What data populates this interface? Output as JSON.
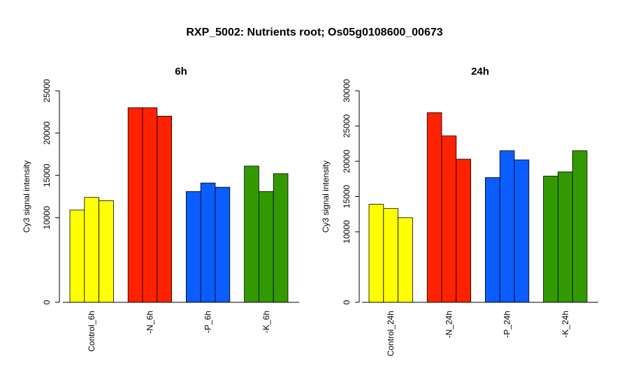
{
  "title": "RXP_5002: Nutrients root; Os05g0108600_00673",
  "chart_data": [
    {
      "type": "bar",
      "title": "6h",
      "ylabel": "Cy3 signal intensity",
      "xlabel": "",
      "ylim": [
        0,
        25000
      ],
      "yticks": [
        0,
        10000,
        15000,
        20000,
        25000
      ],
      "categories": [
        "Control_6h",
        "-N_6h",
        "-P_6h",
        "-K_6h"
      ],
      "colors": [
        "#ffff00",
        "#ff2200",
        "#0a5dff",
        "#339900"
      ],
      "groups": [
        {
          "category": "Control_6h",
          "values": [
            10900,
            12400,
            12000
          ]
        },
        {
          "category": "-N_6h",
          "values": [
            23000,
            23000,
            22000
          ]
        },
        {
          "category": "-P_6h",
          "values": [
            13100,
            14100,
            13600
          ]
        },
        {
          "category": "-K_6h",
          "values": [
            16100,
            13100,
            15200
          ]
        }
      ]
    },
    {
      "type": "bar",
      "title": "24h",
      "ylabel": "Cy3 signal intensity",
      "xlabel": "",
      "ylim": [
        0,
        30000
      ],
      "yticks": [
        0,
        10000,
        15000,
        20000,
        25000,
        30000
      ],
      "categories": [
        "Control_24h",
        "-N_24h",
        "-P_24h",
        "-K_24h"
      ],
      "colors": [
        "#ffff00",
        "#ff2200",
        "#0a5dff",
        "#339900"
      ],
      "groups": [
        {
          "category": "Control_24h",
          "values": [
            13900,
            13300,
            12000
          ]
        },
        {
          "category": "-N_24h",
          "values": [
            26900,
            23600,
            20300
          ]
        },
        {
          "category": "-P_24h",
          "values": [
            17700,
            21500,
            20200
          ]
        },
        {
          "category": "-K_24h",
          "values": [
            17900,
            18500,
            21500
          ]
        }
      ]
    }
  ]
}
